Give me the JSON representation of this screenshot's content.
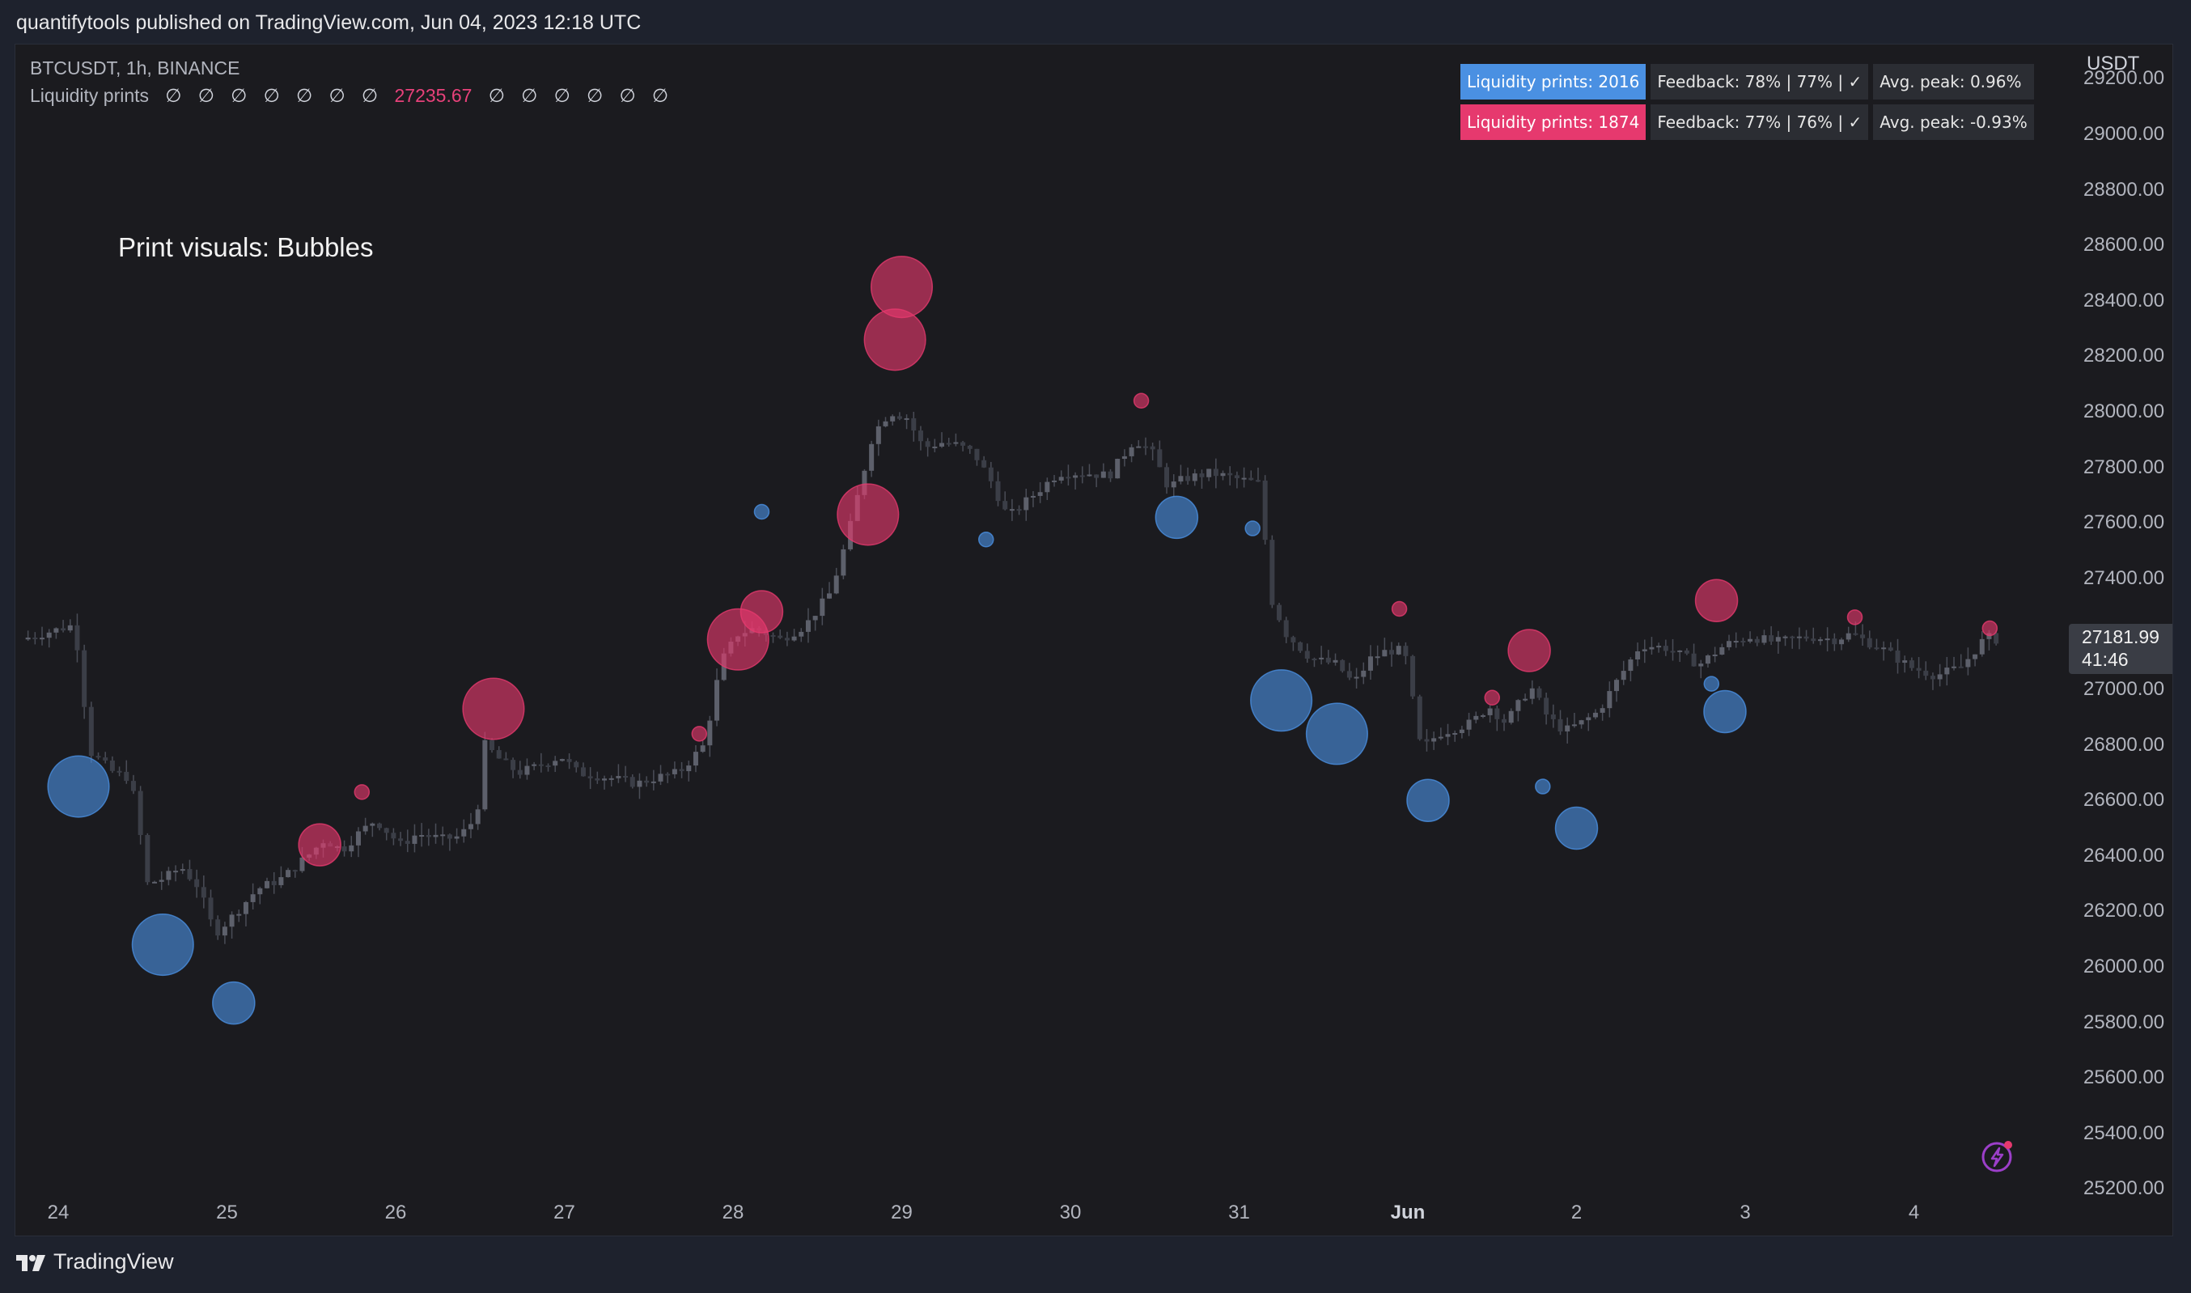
{
  "publish_line": "quantifytools published on TradingView.com, Jun 04, 2023 12:18 UTC",
  "brand": "TradingView",
  "legend": {
    "symbol": "BTCUSDT, 1h, BINANCE",
    "indicator_name": "Liquidity prints",
    "na_symbol": "∅",
    "indicator_value": "27235.67"
  },
  "visual_label": "Print visuals: Bubbles",
  "stats": [
    {
      "prints": "Liquidity prints: 2016",
      "feedback": "Feedback: 78% | 77% | ✓",
      "avg_peak": "Avg. peak: 0.96%"
    },
    {
      "prints": "Liquidity prints: 1874",
      "feedback": "Feedback: 77% | 76% | ✓",
      "avg_peak": "Avg. peak: -0.93%"
    }
  ],
  "price_axis": {
    "currency": "USDT",
    "ticks": [
      "29200.00",
      "29000.00",
      "28800.00",
      "28600.00",
      "28400.00",
      "28200.00",
      "28000.00",
      "27800.00",
      "27600.00",
      "27400.00",
      "27200.00",
      "27000.00",
      "26800.00",
      "26600.00",
      "26400.00",
      "26200.00",
      "26000.00",
      "25800.00",
      "25600.00",
      "25400.00",
      "25200.00"
    ],
    "last_price": "27181.99",
    "countdown": "41:46"
  },
  "time_axis": {
    "ticks": [
      "24",
      "25",
      "26",
      "27",
      "28",
      "29",
      "30",
      "31",
      "Jun",
      "2",
      "3",
      "4"
    ]
  },
  "colors": {
    "bull": "#4a90e2",
    "bear": "#e6396e",
    "candle": "#4a4d57",
    "background": "#1b1b1f"
  },
  "chart_data": {
    "type": "candlestick",
    "title": "BTCUSDT, 1h, BINANCE",
    "ylabel": "USDT",
    "ylim": [
      25200,
      29250
    ],
    "x_unit": "days from May 24 00:00 UTC (hourly candles)",
    "price_path": [
      [
        -0.2,
        27180
      ],
      [
        0.1,
        27230
      ],
      [
        0.15,
        27120
      ],
      [
        0.2,
        26780
      ],
      [
        0.35,
        26700
      ],
      [
        0.45,
        26680
      ],
      [
        0.52,
        26430
      ],
      [
        0.55,
        26300
      ],
      [
        0.65,
        26320
      ],
      [
        0.75,
        26360
      ],
      [
        0.85,
        26290
      ],
      [
        0.95,
        26120
      ],
      [
        1.05,
        26180
      ],
      [
        1.2,
        26280
      ],
      [
        1.35,
        26320
      ],
      [
        1.5,
        26400
      ],
      [
        1.6,
        26460
      ],
      [
        1.7,
        26420
      ],
      [
        1.8,
        26480
      ],
      [
        1.9,
        26530
      ],
      [
        2.05,
        26440
      ],
      [
        2.15,
        26480
      ],
      [
        2.3,
        26460
      ],
      [
        2.4,
        26470
      ],
      [
        2.5,
        26540
      ],
      [
        2.55,
        26800
      ],
      [
        2.65,
        26740
      ],
      [
        2.75,
        26700
      ],
      [
        2.85,
        26720
      ],
      [
        3.0,
        26760
      ],
      [
        3.1,
        26700
      ],
      [
        3.3,
        26680
      ],
      [
        3.45,
        26660
      ],
      [
        3.55,
        26680
      ],
      [
        3.7,
        26700
      ],
      [
        3.85,
        26800
      ],
      [
        3.95,
        27100
      ],
      [
        4.05,
        27200
      ],
      [
        4.15,
        27220
      ],
      [
        4.3,
        27180
      ],
      [
        4.45,
        27230
      ],
      [
        4.6,
        27350
      ],
      [
        4.7,
        27550
      ],
      [
        4.85,
        27920
      ],
      [
        4.95,
        28000
      ],
      [
        5.05,
        27980
      ],
      [
        5.15,
        27870
      ],
      [
        5.25,
        27890
      ],
      [
        5.35,
        27880
      ],
      [
        5.45,
        27850
      ],
      [
        5.55,
        27750
      ],
      [
        5.65,
        27620
      ],
      [
        5.8,
        27700
      ],
      [
        5.95,
        27780
      ],
      [
        6.1,
        27780
      ],
      [
        6.25,
        27770
      ],
      [
        6.4,
        27900
      ],
      [
        6.5,
        27860
      ],
      [
        6.6,
        27730
      ],
      [
        6.7,
        27760
      ],
      [
        6.85,
        27780
      ],
      [
        7.0,
        27760
      ],
      [
        7.15,
        27740
      ],
      [
        7.2,
        27340
      ],
      [
        7.3,
        27200
      ],
      [
        7.45,
        27110
      ],
      [
        7.6,
        27090
      ],
      [
        7.7,
        27020
      ],
      [
        7.8,
        27110
      ],
      [
        7.9,
        27140
      ],
      [
        8.0,
        27140
      ],
      [
        8.1,
        26780
      ],
      [
        8.2,
        26840
      ],
      [
        8.4,
        26880
      ],
      [
        8.5,
        26940
      ],
      [
        8.6,
        26880
      ],
      [
        8.75,
        27010
      ],
      [
        8.85,
        26900
      ],
      [
        8.95,
        26850
      ],
      [
        9.05,
        26880
      ],
      [
        9.15,
        26920
      ],
      [
        9.25,
        27020
      ],
      [
        9.4,
        27160
      ],
      [
        9.55,
        27150
      ],
      [
        9.65,
        27120
      ],
      [
        9.75,
        27090
      ],
      [
        9.9,
        27160
      ],
      [
        10.05,
        27190
      ],
      [
        10.2,
        27170
      ],
      [
        10.4,
        27190
      ],
      [
        10.55,
        27180
      ],
      [
        10.65,
        27200
      ],
      [
        10.75,
        27170
      ],
      [
        10.85,
        27140
      ],
      [
        11.0,
        27080
      ],
      [
        11.15,
        27050
      ],
      [
        11.3,
        27080
      ],
      [
        11.45,
        27190
      ],
      [
        11.5,
        27180
      ]
    ],
    "bubbles": [
      {
        "side": "bull",
        "x": 0.12,
        "price": 26650,
        "size": 3
      },
      {
        "side": "bull",
        "x": 0.62,
        "price": 26080,
        "size": 3
      },
      {
        "side": "bull",
        "x": 1.04,
        "price": 25870,
        "size": 2
      },
      {
        "side": "bull",
        "x": 4.17,
        "price": 27640,
        "size": 1
      },
      {
        "side": "bull",
        "x": 5.5,
        "price": 27540,
        "size": 1
      },
      {
        "side": "bull",
        "x": 6.63,
        "price": 27620,
        "size": 2
      },
      {
        "side": "bull",
        "x": 7.08,
        "price": 27580,
        "size": 1
      },
      {
        "side": "bull",
        "x": 7.25,
        "price": 26960,
        "size": 3
      },
      {
        "side": "bull",
        "x": 7.58,
        "price": 26840,
        "size": 3
      },
      {
        "side": "bull",
        "x": 8.12,
        "price": 26600,
        "size": 2
      },
      {
        "side": "bull",
        "x": 8.8,
        "price": 26650,
        "size": 1
      },
      {
        "side": "bull",
        "x": 9.0,
        "price": 26500,
        "size": 2
      },
      {
        "side": "bull",
        "x": 9.88,
        "price": 26920,
        "size": 2
      },
      {
        "side": "bull",
        "x": 9.8,
        "price": 27020,
        "size": 1
      },
      {
        "side": "bear",
        "x": 1.55,
        "price": 26440,
        "size": 2
      },
      {
        "side": "bear",
        "x": 2.58,
        "price": 26930,
        "size": 3
      },
      {
        "side": "bear",
        "x": 4.03,
        "price": 27180,
        "size": 3
      },
      {
        "side": "bear",
        "x": 4.17,
        "price": 27280,
        "size": 2
      },
      {
        "side": "bear",
        "x": 4.8,
        "price": 27630,
        "size": 3
      },
      {
        "side": "bear",
        "x": 4.96,
        "price": 28260,
        "size": 3
      },
      {
        "side": "bear",
        "x": 5.0,
        "price": 28450,
        "size": 3
      },
      {
        "side": "bear",
        "x": 6.42,
        "price": 28040,
        "size": 1
      },
      {
        "side": "bear",
        "x": 8.72,
        "price": 27140,
        "size": 2
      },
      {
        "side": "bear",
        "x": 8.5,
        "price": 26970,
        "size": 1
      },
      {
        "side": "bear",
        "x": 9.83,
        "price": 27320,
        "size": 2
      },
      {
        "side": "bear",
        "x": 10.65,
        "price": 27260,
        "size": 1
      },
      {
        "side": "bear",
        "x": 11.45,
        "price": 27220,
        "size": 1
      },
      {
        "side": "bear",
        "x": 1.8,
        "price": 26630,
        "size": 1
      },
      {
        "side": "bear",
        "x": 3.8,
        "price": 26840,
        "size": 1
      },
      {
        "side": "bear",
        "x": 7.95,
        "price": 27290,
        "size": 1
      }
    ]
  }
}
